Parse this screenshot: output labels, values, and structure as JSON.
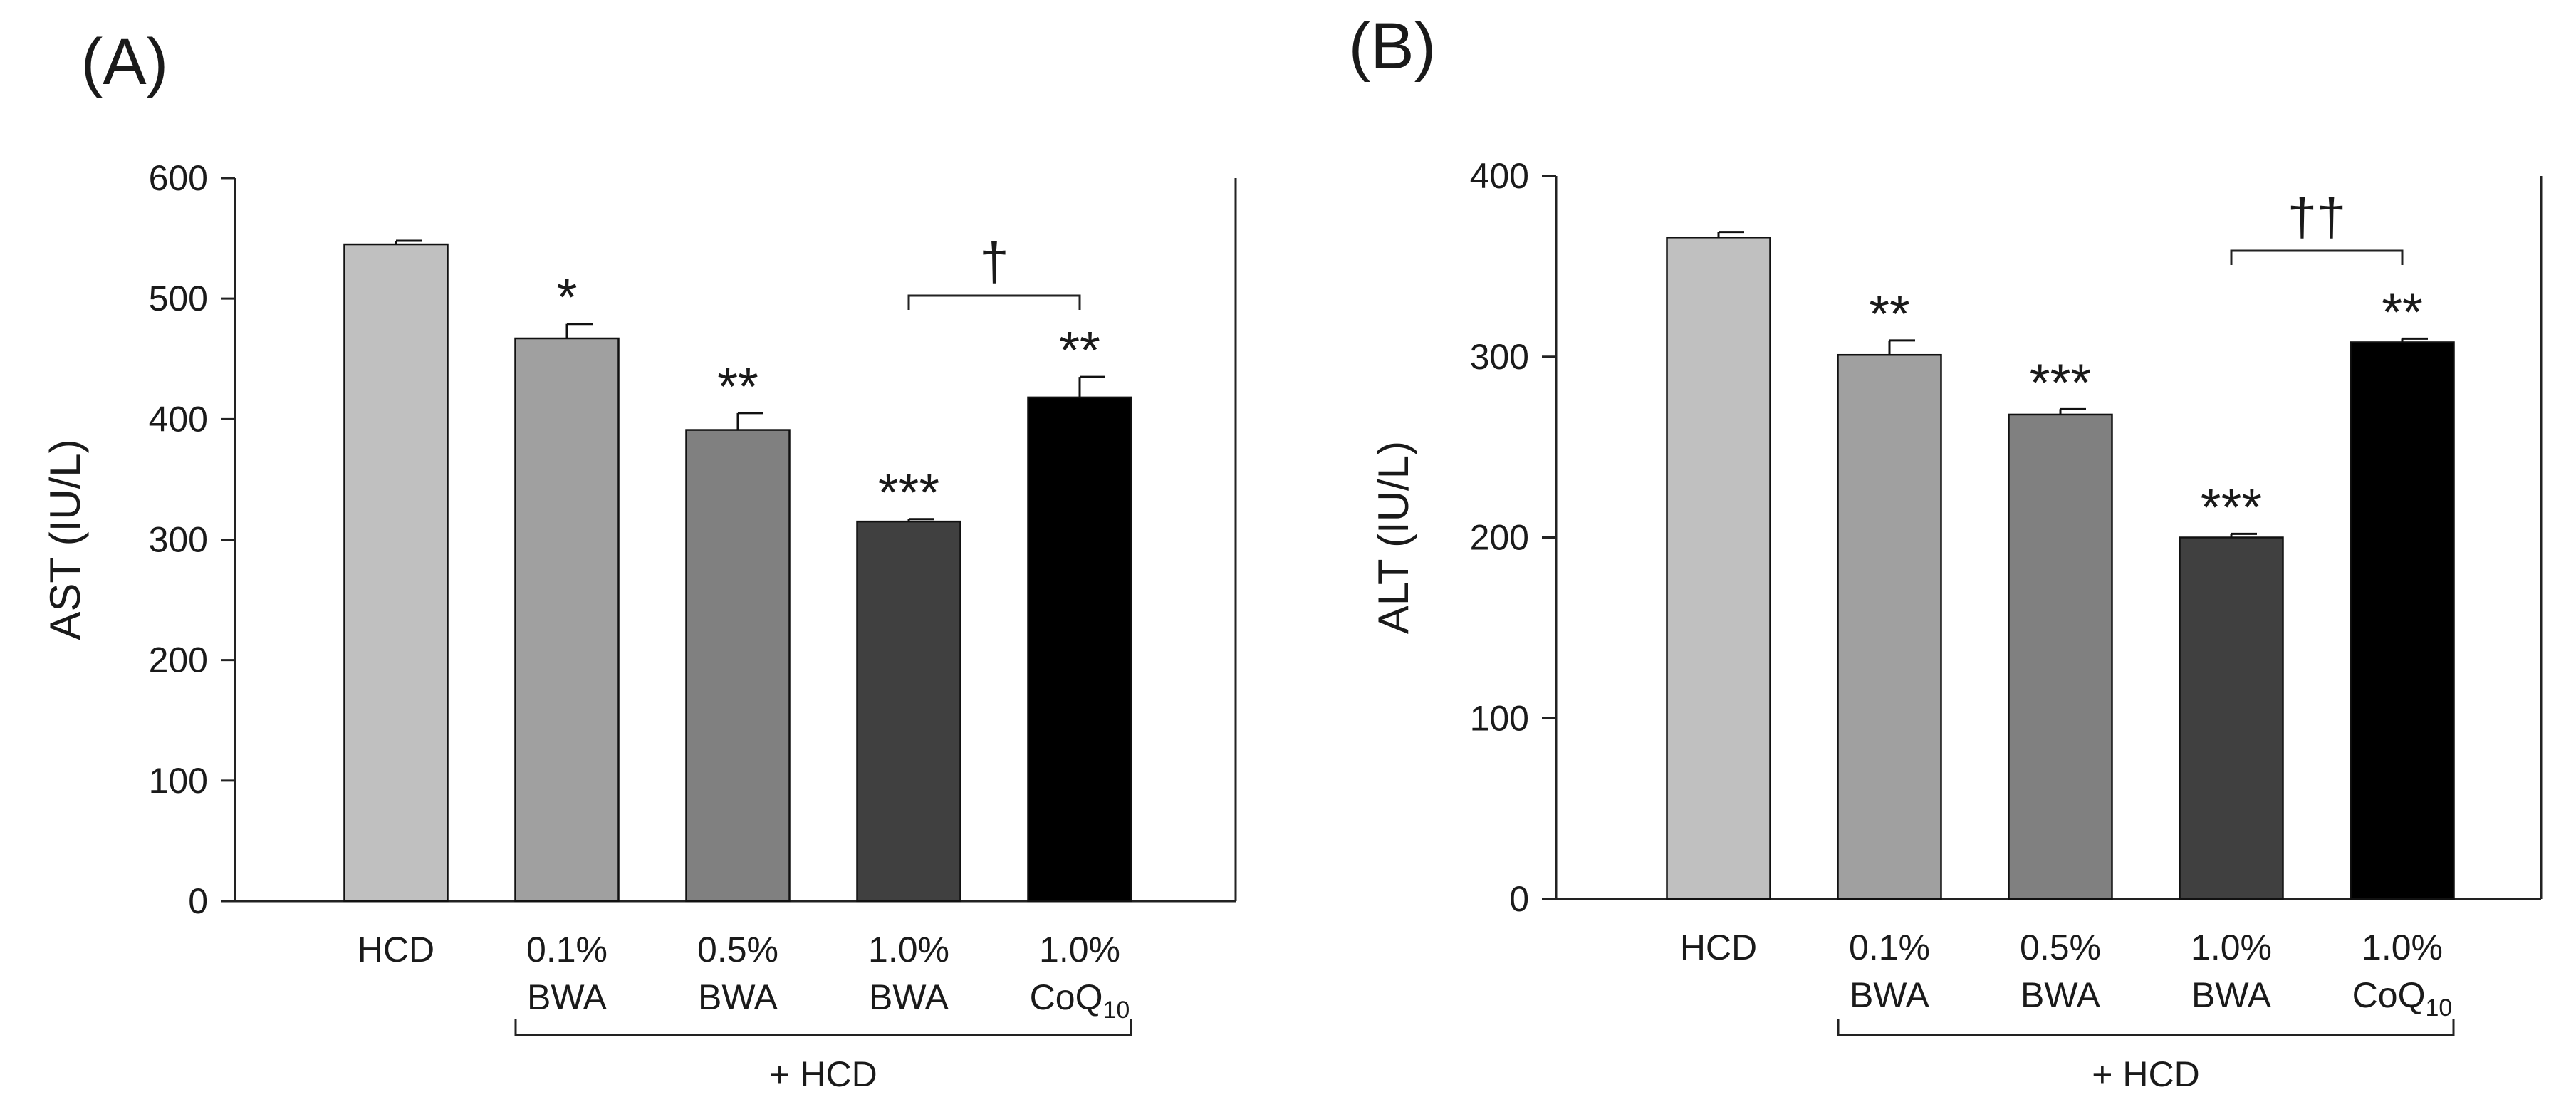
{
  "chart_data": [
    {
      "panel_label": "(A)",
      "type": "bar",
      "ylabel": "AST (IU/L)",
      "ylim": [
        0,
        600
      ],
      "yticks": [
        0,
        100,
        200,
        300,
        400,
        500,
        600
      ],
      "categories": [
        {
          "line1": "HCD",
          "line2": ""
        },
        {
          "line1": "0.1%",
          "line2": "BWA"
        },
        {
          "line1": "0.5%",
          "line2": "BWA"
        },
        {
          "line1": "1.0%",
          "line2": "BWA"
        },
        {
          "line1": "1.0%",
          "line2": "CoQ",
          "line2_sub": "10"
        }
      ],
      "values": [
        545,
        467,
        391,
        315,
        418
      ],
      "errors": [
        3,
        12,
        14,
        2,
        17
      ],
      "colors": [
        "#c0c0c0",
        "#a0a0a0",
        "#808080",
        "#404040",
        "#000000"
      ],
      "significance": [
        "",
        "*",
        "**",
        "***",
        "**"
      ],
      "bracket": {
        "from": 3,
        "to": 4,
        "label": "†"
      },
      "group_label": "+ HCD",
      "group_from": 1,
      "group_to": 4
    },
    {
      "panel_label": "(B)",
      "type": "bar",
      "ylabel": "ALT (IU/L)",
      "ylim": [
        0,
        400
      ],
      "yticks": [
        0,
        100,
        200,
        300,
        400
      ],
      "categories": [
        {
          "line1": "HCD",
          "line2": ""
        },
        {
          "line1": "0.1%",
          "line2": "BWA"
        },
        {
          "line1": "0.5%",
          "line2": "BWA"
        },
        {
          "line1": "1.0%",
          "line2": "BWA"
        },
        {
          "line1": "1.0%",
          "line2": "CoQ",
          "line2_sub": "10"
        }
      ],
      "values": [
        366,
        301,
        268,
        200,
        308
      ],
      "errors": [
        3,
        8,
        3,
        2,
        2
      ],
      "colors": [
        "#c0c0c0",
        "#a0a0a0",
        "#808080",
        "#404040",
        "#000000"
      ],
      "significance": [
        "",
        "**",
        "***",
        "***",
        "**"
      ],
      "bracket": {
        "from": 3,
        "to": 4,
        "label": "††"
      },
      "group_label": "+ HCD",
      "group_from": 1,
      "group_to": 4
    }
  ]
}
